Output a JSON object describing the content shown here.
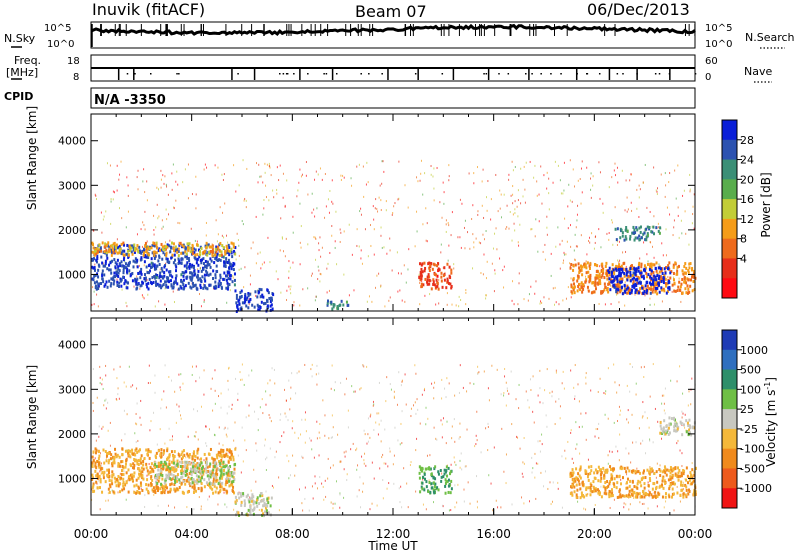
{
  "header": {
    "station": "Inuvik (fitACF)",
    "beam": "Beam 07",
    "date": "06/Dec/2013"
  },
  "top_panel": {
    "nsky_label": "N.Sky",
    "nsearch_label": "N.Search",
    "freq_label_1": "Freq.",
    "freq_label_2": "[MHz]",
    "nave_label": "Nave",
    "cpid_label": "CPID",
    "cpid_value": "N/A -3350",
    "noise_ticks": [
      "10^5",
      "10^0"
    ],
    "freq_ticks": [
      "18",
      "8"
    ],
    "nave_ticks": [
      "60",
      "0"
    ]
  },
  "power_panel": {
    "ylabel": "Slant Range [km]",
    "yticks": [
      "4000",
      "3000",
      "2000",
      "1000"
    ],
    "colorbar_label": "Power [dB]",
    "colorbar_ticks": [
      "28",
      "24",
      "20",
      "16",
      "12",
      "8",
      "4"
    ],
    "colors": [
      "#0a1fd8",
      "#2c52b0",
      "#3b8f76",
      "#59ad4c",
      "#c2cd37",
      "#f59c18",
      "#ee6a1c",
      "#e72e1a",
      "#ff0a12"
    ]
  },
  "velocity_panel": {
    "ylabel": "Slant Range [km]",
    "yticks": [
      "4000",
      "3000",
      "2000",
      "1000"
    ],
    "colorbar_label": "Velocity [m s",
    "colorbar_sup": "-1",
    "colorbar_label_end": "]",
    "colorbar_ticks": [
      "1000",
      "500",
      "100",
      "25",
      "-25",
      "-100",
      "-500",
      "-1000"
    ],
    "colors": [
      "#1f3bb5",
      "#2f6fbf",
      "#2e8f6a",
      "#6fbf45",
      "#c8c8c0",
      "#f4b83a",
      "#f08a1c",
      "#ee5a1c",
      "#f01414"
    ]
  },
  "xaxis": {
    "label": "Time UT",
    "ticks": [
      "00:00",
      "04:00",
      "08:00",
      "12:00",
      "16:00",
      "20:00",
      "00:00"
    ]
  },
  "chart_data": [
    {
      "type": "heatmap",
      "title": "Power",
      "xlabel": "Time UT",
      "ylabel": "Slant Range [km]",
      "xlim": [
        0,
        24
      ],
      "ylim": [
        180,
        4600
      ],
      "colorbar": {
        "label": "Power [dB]",
        "range": [
          0,
          30
        ]
      },
      "regions": [
        {
          "t0": 0.0,
          "t1": 5.7,
          "r0": 700,
          "r1": 1700,
          "value": 26
        },
        {
          "t0": 0.0,
          "t1": 5.7,
          "r0": 1450,
          "r1": 1750,
          "value": 12
        },
        {
          "t0": 5.7,
          "t1": 7.2,
          "r0": 200,
          "r1": 700,
          "value": 27
        },
        {
          "t0": 9.3,
          "t1": 10.2,
          "r0": 250,
          "r1": 450,
          "value": 22
        },
        {
          "t0": 13.0,
          "t1": 14.3,
          "r0": 700,
          "r1": 1300,
          "value": 6
        },
        {
          "t0": 19.0,
          "t1": 24.0,
          "r0": 600,
          "r1": 1300,
          "value": 10
        },
        {
          "t0": 20.5,
          "t1": 23.0,
          "r0": 600,
          "r1": 1200,
          "value": 29
        },
        {
          "t0": 20.8,
          "t1": 22.6,
          "r0": 1800,
          "r1": 2100,
          "value": 22
        }
      ]
    },
    {
      "type": "heatmap",
      "title": "Velocity",
      "xlabel": "Time UT",
      "ylabel": "Slant Range [km]",
      "xlim": [
        0,
        24
      ],
      "ylim": [
        180,
        4600
      ],
      "colorbar": {
        "label": "Velocity [m s-1]",
        "range": [
          -1000,
          1000
        ]
      },
      "regions": [
        {
          "t0": 0.0,
          "t1": 5.7,
          "r0": 700,
          "r1": 1700,
          "value": -300
        },
        {
          "t0": 2.5,
          "t1": 5.7,
          "r0": 900,
          "r1": 1400,
          "value": 100
        },
        {
          "t0": 5.7,
          "t1": 7.2,
          "r0": 200,
          "r1": 700,
          "value": 0
        },
        {
          "t0": 13.0,
          "t1": 14.3,
          "r0": 700,
          "r1": 1300,
          "value": 300
        },
        {
          "t0": 19.0,
          "t1": 24.0,
          "r0": 600,
          "r1": 1300,
          "value": -300
        },
        {
          "t0": 22.5,
          "t1": 24.0,
          "r0": 2000,
          "r1": 2400,
          "value": 0
        }
      ]
    }
  ]
}
